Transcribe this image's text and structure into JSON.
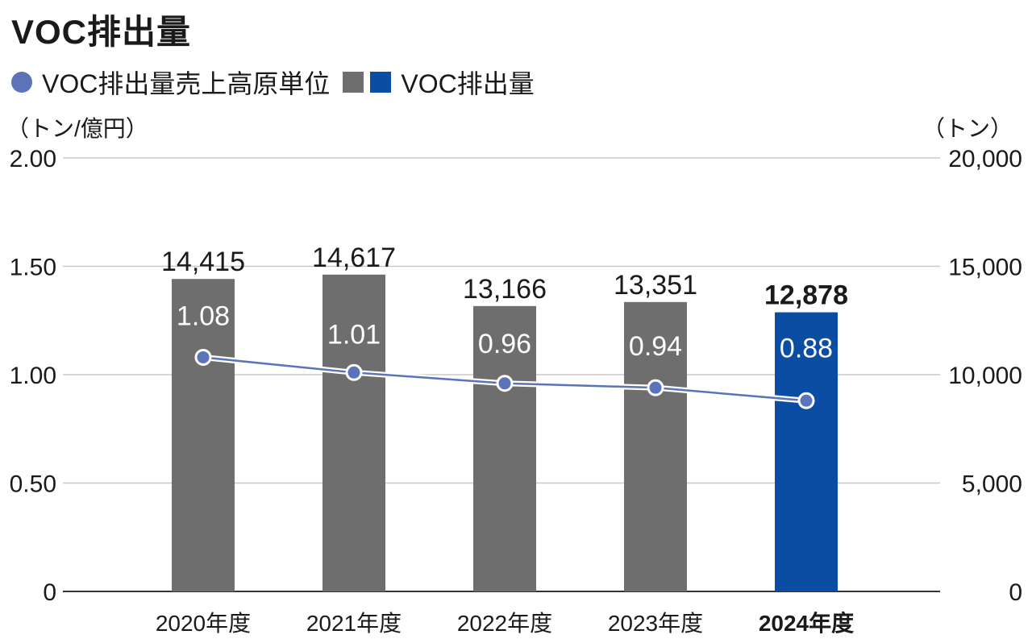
{
  "title": "VOC排出量",
  "legend": [
    {
      "label": "VOC排出量売上高原単位",
      "color": "#5a73b9",
      "shape": "circle"
    },
    {
      "label": "VOC排出量",
      "colors": [
        "#6e6e6e",
        "#0a4da2"
      ],
      "shape": "square"
    }
  ],
  "units": {
    "left": "（トン/億円）",
    "right": "（トン）"
  },
  "colors": {
    "bar": "#6e6e6e",
    "bar_highlight": "#0a4da2",
    "line": "#5a73b9",
    "grid": "#c8c8c8",
    "axis": "#333333"
  },
  "chart_data": {
    "type": "bar",
    "categories": [
      "2020年度",
      "2021年度",
      "2022年度",
      "2023年度",
      "2024年度"
    ],
    "highlight_index": 4,
    "series": [
      {
        "name": "VOC排出量",
        "type": "bar",
        "axis": "right",
        "values": [
          14415,
          14617,
          13166,
          13351,
          12878
        ],
        "labels": [
          "14,415",
          "14,617",
          "13,166",
          "13,351",
          "12,878"
        ]
      },
      {
        "name": "VOC排出量売上高原単位",
        "type": "line",
        "axis": "left",
        "values": [
          1.08,
          1.01,
          0.96,
          0.94,
          0.88
        ],
        "labels": [
          "1.08",
          "1.01",
          "0.96",
          "0.94",
          "0.88"
        ]
      }
    ],
    "y_left": {
      "ylim": [
        0,
        2.0
      ],
      "ticks": [
        0,
        0.5,
        1.0,
        1.5,
        2.0
      ],
      "tick_labels": [
        "0",
        "0.50",
        "1.00",
        "1.50",
        "2.00"
      ]
    },
    "y_right": {
      "ylim": [
        0,
        20000
      ],
      "ticks": [
        0,
        5000,
        10000,
        15000,
        20000
      ],
      "tick_labels": [
        "0",
        "5,000",
        "10,000",
        "15,000",
        "20,000"
      ]
    },
    "grid": true
  }
}
